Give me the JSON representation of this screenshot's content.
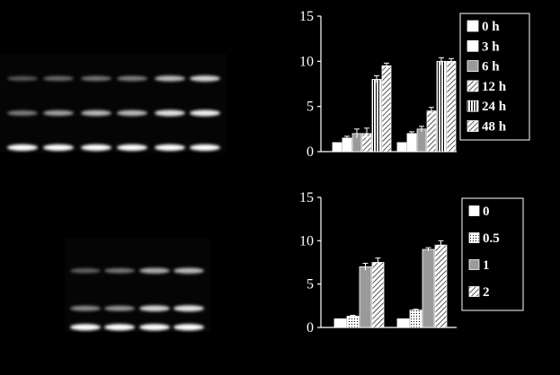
{
  "chart_data": [
    {
      "type": "bar",
      "ylim": [
        0,
        15
      ],
      "yticks": [
        "0",
        "5",
        "10",
        "15"
      ],
      "groups": 2,
      "series": [
        {
          "name": "0 h",
          "values": [
            1.0,
            1.0
          ],
          "errors": [
            0.0,
            0.0
          ],
          "pattern": "white"
        },
        {
          "name": "3 h",
          "values": [
            1.5,
            2.0
          ],
          "errors": [
            0.2,
            0.2
          ],
          "pattern": "white"
        },
        {
          "name": "6 h",
          "values": [
            2.0,
            2.5
          ],
          "errors": [
            0.5,
            0.3
          ],
          "pattern": "gray"
        },
        {
          "name": "12 h",
          "values": [
            2.0,
            4.5
          ],
          "errors": [
            0.6,
            0.4
          ],
          "pattern": "diag"
        },
        {
          "name": "24 h",
          "values": [
            8.0,
            10.0
          ],
          "errors": [
            0.4,
            0.4
          ],
          "pattern": "vert"
        },
        {
          "name": "48 h",
          "values": [
            9.5,
            10.0
          ],
          "errors": [
            0.3,
            0.3
          ],
          "pattern": "diag"
        }
      ]
    },
    {
      "type": "bar",
      "ylim": [
        0,
        15
      ],
      "yticks": [
        "0",
        "5",
        "10",
        "15"
      ],
      "groups": 2,
      "series": [
        {
          "name": "0",
          "values": [
            1.0,
            1.0
          ],
          "errors": [
            0.0,
            0.0
          ],
          "pattern": "white"
        },
        {
          "name": "0.5",
          "values": [
            1.3,
            2.0
          ],
          "errors": [
            0.1,
            0.1
          ],
          "pattern": "dots"
        },
        {
          "name": "1",
          "values": [
            7.0,
            9.0
          ],
          "errors": [
            0.4,
            0.2
          ],
          "pattern": "gray"
        },
        {
          "name": "2",
          "values": [
            7.5,
            9.5
          ],
          "errors": [
            0.5,
            0.5
          ],
          "pattern": "diag"
        }
      ]
    }
  ],
  "blots": [
    {
      "lanes": 6,
      "bands": [
        0.25,
        0.6,
        0.95
      ]
    },
    {
      "lanes": 4,
      "bands": [
        0.35,
        0.75,
        0.95
      ]
    }
  ]
}
